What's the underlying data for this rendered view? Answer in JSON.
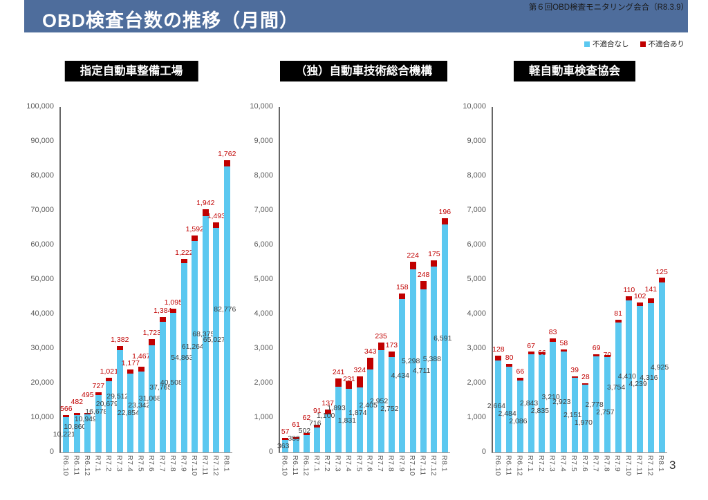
{
  "header": {
    "title": "OBD検査台数の推移（月間）",
    "caption": "第６回OBD検査モニタリング会合（R8.3.9）"
  },
  "legend": {
    "pass": "不適合なし",
    "fail": "不適合あり"
  },
  "colors": {
    "banner": "#4e6d9c",
    "bar_pass": "#5bc8f0",
    "bar_fail": "#c00000",
    "pass_label": "#3f3f3f",
    "fail_label": "#c00000",
    "axis_text": "#595959",
    "title_box_bg": "#000000",
    "title_box_text": "#ffffff"
  },
  "footer": {
    "page_number": "3"
  },
  "chart_data": [
    {
      "type": "bar",
      "stacked": true,
      "title": "指定自動車整備工場",
      "categories": [
        "R6.10",
        "R6.11",
        "R6.12",
        "R7.1",
        "R7.2",
        "R7.3",
        "R7.4",
        "R7.5",
        "R7.6",
        "R7.7",
        "R7.8",
        "R7.9",
        "R7.10",
        "R7.11",
        "R7.12",
        "R8.1"
      ],
      "series": [
        {
          "name": "不適合なし",
          "color": "#5bc8f0",
          "values": [
            10221,
            10860,
            10949,
            16678,
            20679,
            29512,
            22854,
            23342,
            31068,
            37765,
            40508,
            54863,
            61264,
            68375,
            65027,
            82776
          ]
        },
        {
          "name": "不適合あり",
          "color": "#c00000",
          "values": [
            566,
            482,
            495,
            727,
            1021,
            1382,
            1177,
            1467,
            1723,
            1384,
            1095,
            1222,
            1592,
            1942,
            1493,
            1762
          ]
        }
      ],
      "ylim": [
        0,
        100000
      ],
      "ytick": 10000,
      "grid": false
    },
    {
      "type": "bar",
      "stacked": true,
      "title": "（独）自動車技術総合機構",
      "categories": [
        "R6.10",
        "R6.11",
        "R6.12",
        "R7.1",
        "R7.2",
        "R7.3",
        "R7.4",
        "R7.5",
        "R7.6",
        "R7.7",
        "R7.8",
        "R7.9",
        "R7.10",
        "R7.11",
        "R7.12",
        "R8.1"
      ],
      "series": [
        {
          "name": "不適合なし",
          "color": "#5bc8f0",
          "values": [
            363,
            389,
            502,
            716,
            1100,
            1893,
            1831,
            1874,
            2405,
            2952,
            2752,
            4434,
            5298,
            4711,
            5388,
            6591
          ]
        },
        {
          "name": "不適合あり",
          "color": "#c00000",
          "values": [
            57,
            61,
            62,
            91,
            137,
            241,
            231,
            324,
            343,
            235,
            173,
            158,
            224,
            248,
            175,
            196
          ]
        }
      ],
      "ylim": [
        0,
        10000
      ],
      "ytick": 1000,
      "grid": false
    },
    {
      "type": "bar",
      "stacked": true,
      "title": "軽自動車検査協会",
      "categories": [
        "R6.10",
        "R6.11",
        "R6.12",
        "R7.1",
        "R7.2",
        "R7.3",
        "R7.4",
        "R7.5",
        "R7.6",
        "R7.7",
        "R7.8",
        "R7.9",
        "R7.10",
        "R7.11",
        "R7.12",
        "R8.1"
      ],
      "series": [
        {
          "name": "不適合なし",
          "color": "#5bc8f0",
          "values": [
            2664,
            2484,
            2086,
            2843,
            2835,
            3210,
            2923,
            2151,
            1970,
            2778,
            2757,
            3754,
            4410,
            4239,
            4316,
            4925
          ]
        },
        {
          "name": "不適合あり",
          "color": "#c00000",
          "values": [
            128,
            80,
            66,
            67,
            66,
            83,
            58,
            39,
            28,
            69,
            70,
            81,
            110,
            102,
            141,
            125
          ]
        }
      ],
      "ylim": [
        0,
        10000
      ],
      "ytick": 1000,
      "grid": false
    }
  ]
}
